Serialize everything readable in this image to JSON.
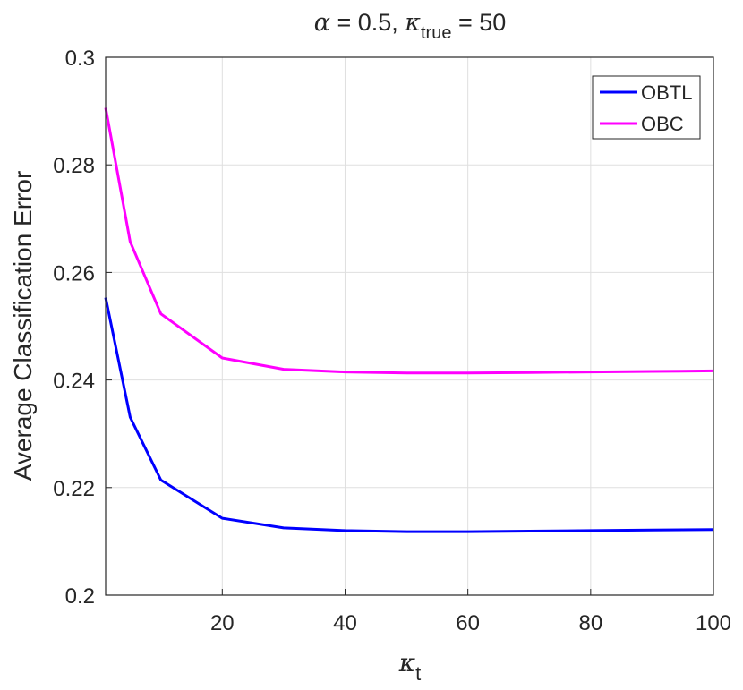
{
  "chart_data": {
    "type": "line",
    "title": {
      "alpha_symbol": "α",
      "alpha_text": " = 0.5, ",
      "kappa_symbol": "κ",
      "kappa_subscript": "true",
      "kappa_text": " = 50"
    },
    "xlabel": {
      "symbol": "κ",
      "subscript": "t"
    },
    "ylabel": "Average Classification Error",
    "xlim": [
      1,
      100
    ],
    "ylim": [
      0.2,
      0.3
    ],
    "xticks": [
      20,
      40,
      60,
      80,
      100
    ],
    "xtick_labels": [
      "20",
      "40",
      "60",
      "80",
      "100"
    ],
    "yticks": [
      0.2,
      0.22,
      0.24,
      0.26,
      0.28,
      0.3
    ],
    "ytick_labels": [
      "0.2",
      "0.22",
      "0.24",
      "0.26",
      "0.28",
      "0.3"
    ],
    "grid": true,
    "legend_position": "top-right",
    "x": [
      1,
      5,
      10,
      20,
      30,
      40,
      50,
      60,
      70,
      80,
      90,
      100
    ],
    "series": [
      {
        "name": "OBTL",
        "color": "#0000ff",
        "values": [
          0.2553,
          0.2331,
          0.2214,
          0.2143,
          0.2125,
          0.212,
          0.2118,
          0.2118,
          0.2119,
          0.212,
          0.2121,
          0.2122
        ]
      },
      {
        "name": "OBC",
        "color": "#ff00ff",
        "values": [
          0.2906,
          0.2657,
          0.2523,
          0.2441,
          0.242,
          0.2415,
          0.2413,
          0.2413,
          0.2414,
          0.2415,
          0.2416,
          0.2417
        ]
      }
    ]
  }
}
